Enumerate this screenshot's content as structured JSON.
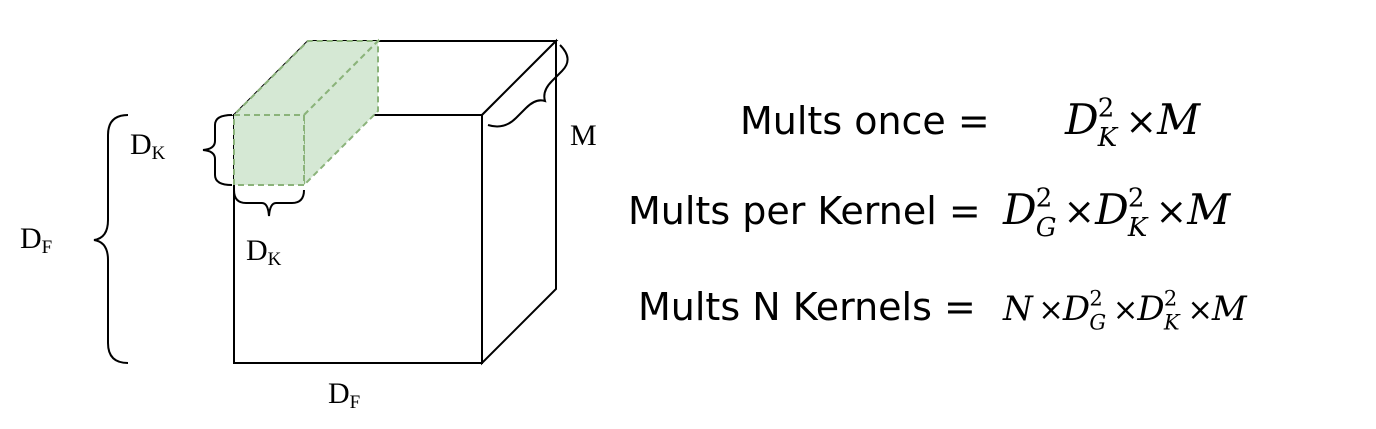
{
  "colors": {
    "kernel_fill": "#d5e8d4",
    "kernel_stroke": "#8bb37a",
    "outline": "#000000",
    "background": "#ffffff"
  },
  "labels": {
    "df_side": {
      "main": "D",
      "sub": "F"
    },
    "df_bottom": {
      "main": "D",
      "sub": "F"
    },
    "dk_left": {
      "main": "D",
      "sub": "K"
    },
    "dk_bottom": {
      "main": "D",
      "sub": "K"
    },
    "m_depth": "M"
  },
  "equations": {
    "once": {
      "lhs": "Mults once =",
      "terms": [
        {
          "base": "D",
          "sub": "K",
          "sup": "2"
        },
        {
          "op": "×"
        },
        {
          "base": "M"
        }
      ]
    },
    "per_kernel": {
      "lhs": "Mults per Kernel =",
      "terms": [
        {
          "base": "D",
          "sub": "G",
          "sup": "2"
        },
        {
          "op": "×"
        },
        {
          "base": "D",
          "sub": "K",
          "sup": "2"
        },
        {
          "op": "×"
        },
        {
          "base": "M"
        }
      ]
    },
    "n_kernels": {
      "lhs": "Mults N Kernels =",
      "terms": [
        {
          "base": "N"
        },
        {
          "op": "×"
        },
        {
          "base": "D",
          "sub": "G",
          "sup": "2"
        },
        {
          "op": "×"
        },
        {
          "base": "D",
          "sub": "K",
          "sup": "2"
        },
        {
          "op": "×"
        },
        {
          "base": "M"
        }
      ]
    }
  }
}
